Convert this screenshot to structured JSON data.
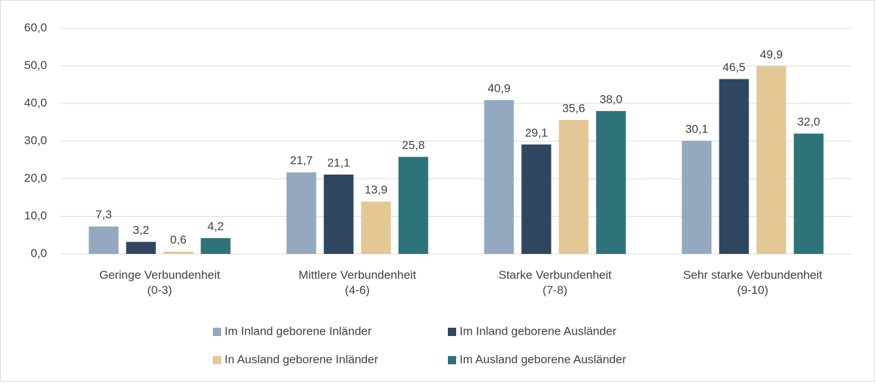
{
  "chart_data": {
    "type": "bar",
    "categories": [
      "Geringe Verbundenheit\n(0-3)",
      "Mittlere Verbundenheit\n(4-6)",
      "Starke Verbundenheit\n(7-8)",
      "Sehr starke Verbundenheit\n(9-10)"
    ],
    "series": [
      {
        "name": "Im Inland geborene Inländer",
        "color": "#94a9bf",
        "values": [
          7.3,
          21.7,
          40.9,
          30.1
        ],
        "value_labels": [
          "7,3",
          "21,7",
          "40,9",
          "30,1"
        ]
      },
      {
        "name": "Im Inland geborene Ausländer",
        "color": "#2e4660",
        "values": [
          3.2,
          21.1,
          29.1,
          46.5
        ],
        "value_labels": [
          "3,2",
          "21,1",
          "29,1",
          "46,5"
        ]
      },
      {
        "name": "In Ausland geborene Inländer",
        "color": "#e3c896",
        "values": [
          0.6,
          13.9,
          35.6,
          49.9
        ],
        "value_labels": [
          "0,6",
          "13,9",
          "35,6",
          "49,9"
        ]
      },
      {
        "name": "Im Ausland geborene Ausländer",
        "color": "#2e727a",
        "values": [
          4.2,
          25.8,
          38.0,
          32.0
        ],
        "value_labels": [
          "4,2",
          "25,8",
          "38,0",
          "32,0"
        ]
      }
    ],
    "ylim": [
      0,
      60
    ],
    "yticks": [
      {
        "value": 0,
        "label": "0,0"
      },
      {
        "value": 10,
        "label": "10,0"
      },
      {
        "value": 20,
        "label": "20,0"
      },
      {
        "value": 30,
        "label": "30,0"
      },
      {
        "value": 40,
        "label": "40,0"
      },
      {
        "value": 50,
        "label": "50,0"
      },
      {
        "value": 60,
        "label": "60,0"
      }
    ],
    "grid": true,
    "legend": "bottom"
  }
}
